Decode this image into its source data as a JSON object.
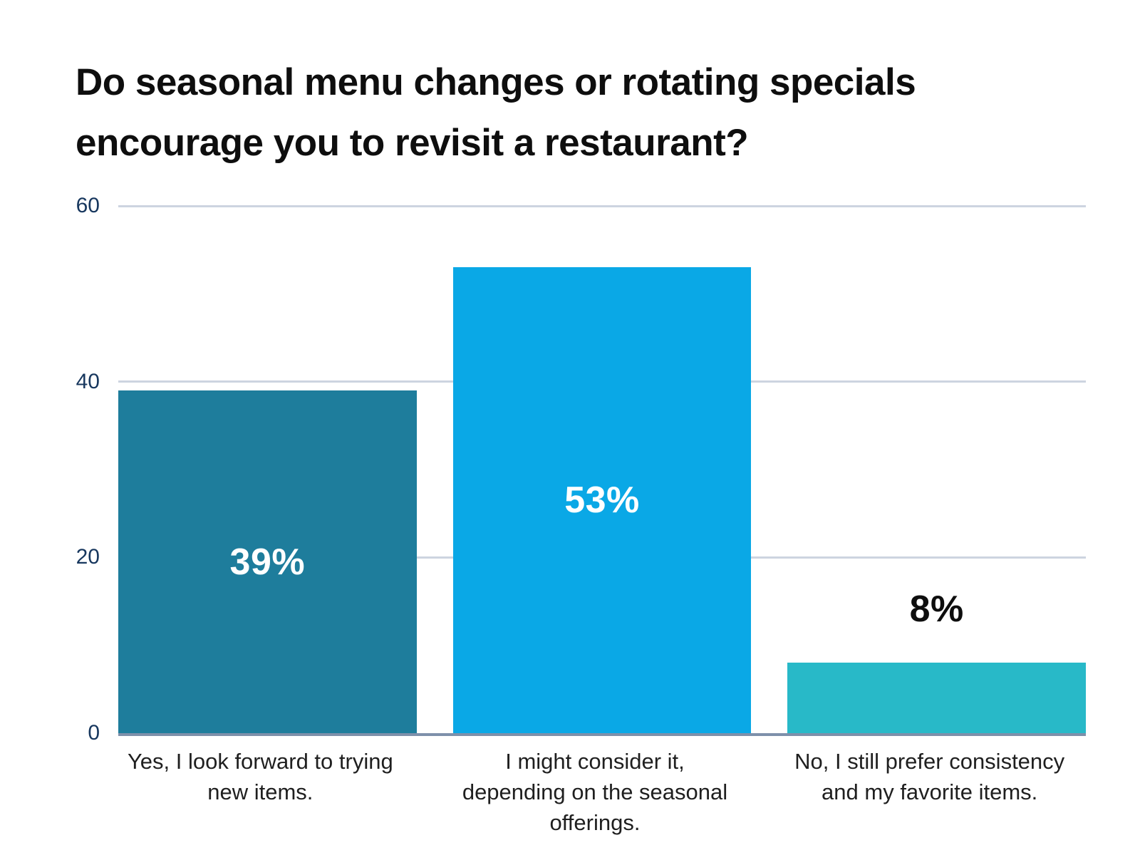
{
  "chart_data": {
    "type": "bar",
    "title": "Do seasonal menu changes or rotating specials encourage you to revisit a restaurant?",
    "categories": [
      "Yes, I look forward to trying new items.",
      "I might consider it, depending on the seasonal offerings.",
      "No, I still prefer consistency and my favorite items."
    ],
    "values": [
      39,
      53,
      8
    ],
    "value_labels": [
      "39%",
      "53%",
      "8%"
    ],
    "bar_colors": [
      "#1E7D9C",
      "#0AA8E6",
      "#28B9C8"
    ],
    "value_label_placement": [
      "inside",
      "inside",
      "above"
    ],
    "value_label_colors": [
      "#FFFFFF",
      "#FFFFFF",
      "#0E0E0E"
    ],
    "yticks": [
      0,
      20,
      40,
      60
    ],
    "ytick_labels": [
      "0",
      "20",
      "40",
      "60"
    ],
    "ylim": [
      0,
      60
    ],
    "xlabel": "",
    "ylabel": "",
    "grid": "horizontal",
    "legend": "none"
  },
  "style": {
    "background": "#FFFFFF",
    "title_color": "#0E0E0E",
    "gridline_color": "#CDD4E0",
    "baseline_color": "#7E90AA",
    "ytick_color": "#17375E",
    "xtick_color": "#1F1F1F"
  }
}
